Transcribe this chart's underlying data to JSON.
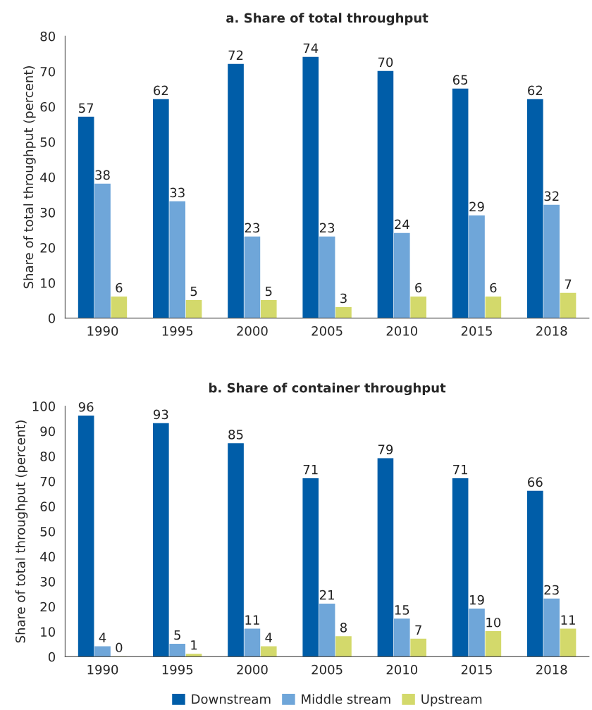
{
  "chart_data": [
    {
      "type": "bar",
      "title": "a. Share of total throughput",
      "ylabel": "Share of total throughput (percent)",
      "categories": [
        "1990",
        "1995",
        "2000",
        "2005",
        "2010",
        "2015",
        "2018"
      ],
      "series": [
        {
          "color": "#005da8",
          "values": [
            57,
            62,
            72,
            74,
            70,
            65,
            62
          ]
        },
        {
          "color": "#6fa6d9",
          "values": [
            38,
            33,
            23,
            23,
            24,
            29,
            32
          ]
        },
        {
          "color": "#d3d96b",
          "values": [
            6,
            5,
            5,
            3,
            6,
            6,
            7
          ]
        }
      ],
      "ylim": [
        0,
        80
      ],
      "yticks": [
        0,
        10,
        20,
        30,
        40,
        50,
        60,
        70,
        80
      ],
      "data_labels": true,
      "grid": false,
      "legend": false
    },
    {
      "type": "bar",
      "title": "b. Share of container throughput",
      "ylabel": "Share of total throughput (percent)",
      "categories": [
        "1990",
        "1995",
        "2000",
        "2005",
        "2010",
        "2015",
        "2018"
      ],
      "series": [
        {
          "name": "Downstream",
          "color": "#005da8",
          "values": [
            96,
            93,
            85,
            71,
            79,
            71,
            66
          ]
        },
        {
          "name": "Middle stream",
          "color": "#6fa6d9",
          "values": [
            4,
            5,
            11,
            21,
            15,
            19,
            23
          ]
        },
        {
          "name": "Upstream",
          "color": "#d3d96b",
          "values": [
            0,
            1,
            4,
            8,
            7,
            10,
            11
          ]
        }
      ],
      "ylim": [
        0,
        100
      ],
      "yticks": [
        0,
        10,
        20,
        30,
        40,
        50,
        60,
        70,
        80,
        90,
        100
      ],
      "data_labels": true,
      "grid": false,
      "legend": "bottom"
    }
  ]
}
